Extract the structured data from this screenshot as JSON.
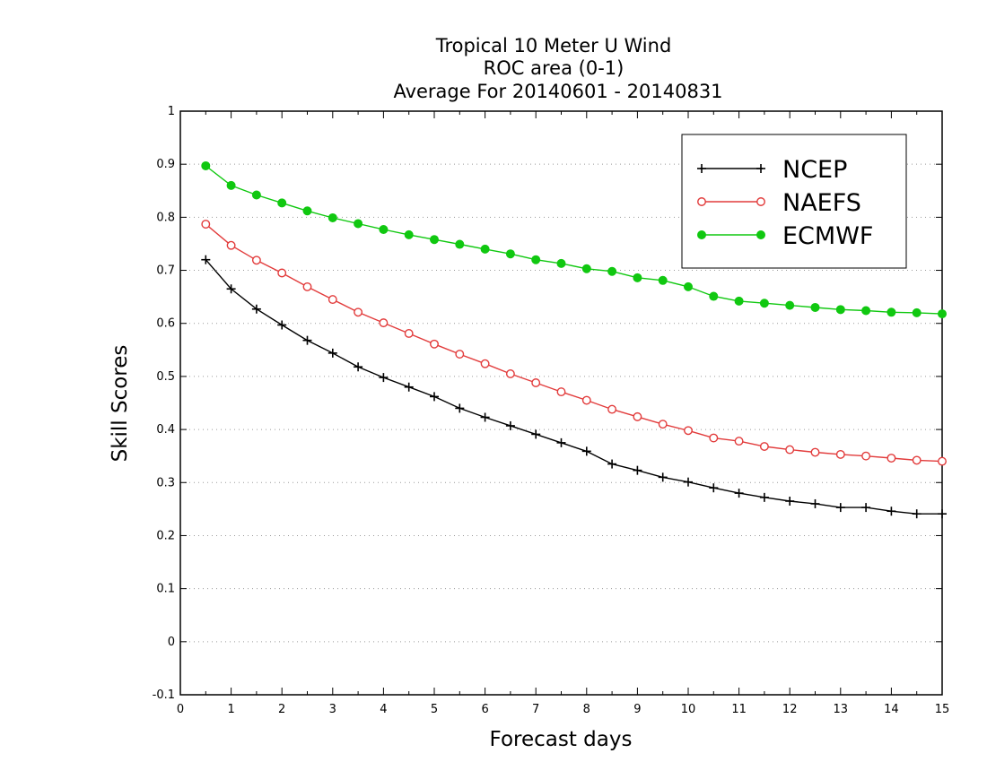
{
  "chart_data": {
    "type": "line",
    "title_lines": [
      "Tropical 10 Meter U Wind",
      "ROC area (0-1)",
      "Average For 20140601 - 20140831"
    ],
    "xlabel": "Forecast days",
    "ylabel": "Skill Scores",
    "xlim": [
      0,
      15
    ],
    "ylim": [
      -0.1,
      1
    ],
    "x_ticks": [
      "0",
      "1",
      "2",
      "3",
      "4",
      "5",
      "6",
      "7",
      "8",
      "9",
      "10",
      "11",
      "12",
      "13",
      "14",
      "15"
    ],
    "y_ticks": [
      "-0.1",
      "0",
      "0.1",
      "0.2",
      "0.3",
      "0.4",
      "0.5",
      "0.6",
      "0.7",
      "0.8",
      "0.9",
      "1"
    ],
    "grid": "horizontal dotted",
    "legend_position": "top-right",
    "x": [
      0.5,
      1,
      1.5,
      2,
      2.5,
      3,
      3.5,
      4,
      4.5,
      5,
      5.5,
      6,
      6.5,
      7,
      7.5,
      8,
      8.5,
      9,
      9.5,
      10,
      10.5,
      11,
      11.5,
      12,
      12.5,
      13,
      13.5,
      14,
      14.5,
      15
    ],
    "series": [
      {
        "name": "NCEP",
        "color": "#000000",
        "marker": "plus",
        "values": [
          0.72,
          0.665,
          0.627,
          0.597,
          0.568,
          0.544,
          0.518,
          0.498,
          0.48,
          0.462,
          0.44,
          0.423,
          0.407,
          0.391,
          0.375,
          0.359,
          0.335,
          0.323,
          0.31,
          0.301,
          0.29,
          0.28,
          0.272,
          0.265,
          0.26,
          0.253,
          0.253,
          0.246,
          0.241,
          0.241
        ]
      },
      {
        "name": "NAEFS",
        "color": "#e23b3b",
        "marker": "open-circle",
        "values": [
          0.787,
          0.747,
          0.719,
          0.695,
          0.669,
          0.645,
          0.621,
          0.601,
          0.581,
          0.561,
          0.542,
          0.524,
          0.505,
          0.488,
          0.471,
          0.455,
          0.438,
          0.424,
          0.41,
          0.398,
          0.384,
          0.378,
          0.368,
          0.362,
          0.357,
          0.353,
          0.35,
          0.346,
          0.342,
          0.34
        ]
      },
      {
        "name": "ECMWF",
        "color": "#10c810",
        "marker": "filled-circle",
        "values": [
          0.897,
          0.86,
          0.842,
          0.827,
          0.812,
          0.799,
          0.788,
          0.777,
          0.767,
          0.758,
          0.749,
          0.74,
          0.731,
          0.72,
          0.713,
          0.703,
          0.698,
          0.686,
          0.681,
          0.669,
          0.651,
          0.642,
          0.638,
          0.634,
          0.63,
          0.626,
          0.624,
          0.621,
          0.62,
          0.618
        ]
      }
    ]
  }
}
